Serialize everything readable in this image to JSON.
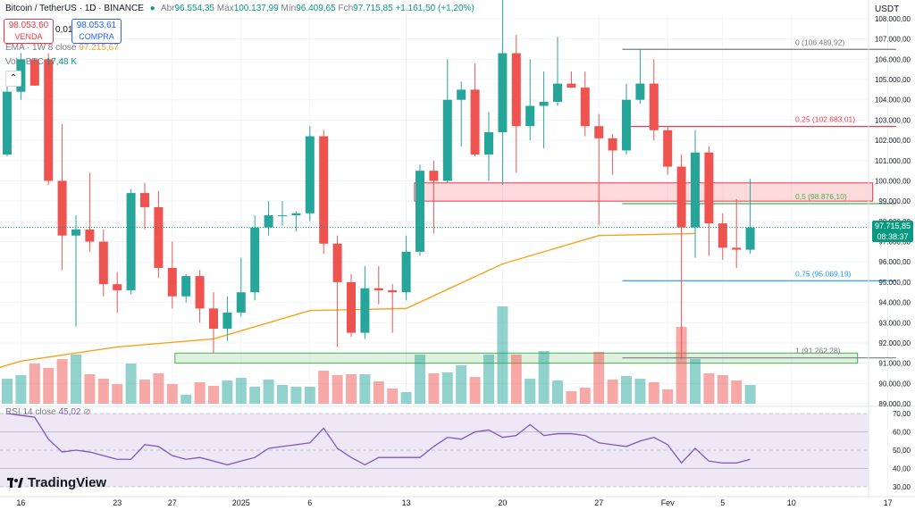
{
  "header": {
    "symbol": "Bitcoin / TetherUS · 1D · BINANCE",
    "open_label": "Abr",
    "open": "96.554,35",
    "high_label": "Máx",
    "high": "100.137,99",
    "low_label": "Mín",
    "low": "96.409,65",
    "close_label": "Fch",
    "close": "97.715,85",
    "change": "+1.161,50 (+1,20%)",
    "sell_price": "98.053,60",
    "sell_label": "VENDA",
    "spread": "0,01",
    "buy_price": "98.053,61",
    "buy_label": "COMPRA",
    "ema_label": "EMA · 1W 8 close",
    "ema_value": "97.215,67",
    "volume_label": "Vol · BTC",
    "volume_value": "17,48 K",
    "rsi_label": "RSI 14 close",
    "rsi_value": "45,02",
    "currency": "USDT",
    "last_price": "97.715,85",
    "countdown": "08:38:37",
    "brand": "TradingView"
  },
  "colors": {
    "up": "#26a69a",
    "down": "#ef5350",
    "ema": "#f7a21b",
    "rsi": "#7e57c2",
    "rsi_band": "#ede7f6",
    "fib0": "#787b86",
    "fib025": "#f23645",
    "fib05": "#4caf50",
    "fib075": "#2196f3",
    "fib1": "#787b86"
  },
  "chart_data": {
    "type": "candlestick",
    "y_range": [
      89000,
      108000
    ],
    "y_ticks": [
      89000,
      90000,
      91000,
      92000,
      93000,
      94000,
      95000,
      96000,
      97000,
      98000,
      99000,
      100000,
      101000,
      102000,
      103000,
      104000,
      105000,
      106000,
      107000,
      108000
    ],
    "y_tick_labels": [
      "89.000,00",
      "90.000,00",
      "91.000,00",
      "92.000,00",
      "93.000,00",
      "94.000,00",
      "95.000,00",
      "96.000,00",
      "97.000,00",
      "98.000,00",
      "99.000,00",
      "100.000,00",
      "101.000,00",
      "102.000,00",
      "103.000,00",
      "104.000,00",
      "105.000,00",
      "106.000,00",
      "107.000,00",
      "108.000,00"
    ],
    "x_ticks": [
      {
        "i": 1,
        "label": "16"
      },
      {
        "i": 8,
        "label": "23"
      },
      {
        "i": 12,
        "label": "27"
      },
      {
        "i": 17,
        "label": "2025"
      },
      {
        "i": 22,
        "label": "6"
      },
      {
        "i": 29,
        "label": "13"
      },
      {
        "i": 36,
        "label": "20"
      },
      {
        "i": 43,
        "label": "27"
      },
      {
        "i": 48,
        "label": "Fev"
      },
      {
        "i": 52,
        "label": "5"
      },
      {
        "i": 57,
        "label": "10"
      },
      {
        "i": 64,
        "label": "17"
      }
    ],
    "candles": [
      {
        "o": 101300,
        "h": 104700,
        "l": 101200,
        "c": 104400
      },
      {
        "o": 104400,
        "h": 106300,
        "l": 104000,
        "c": 106000
      },
      {
        "o": 106000,
        "h": 106000,
        "l": 104700,
        "c": 104700
      },
      {
        "o": 106000,
        "h": 106300,
        "l": 99800,
        "c": 100000
      },
      {
        "o": 100000,
        "h": 102800,
        "l": 95600,
        "c": 97300
      },
      {
        "o": 97300,
        "h": 98300,
        "l": 92800,
        "c": 97600
      },
      {
        "o": 97600,
        "h": 100400,
        "l": 96500,
        "c": 97000
      },
      {
        "o": 97000,
        "h": 97600,
        "l": 94300,
        "c": 94900
      },
      {
        "o": 94900,
        "h": 95500,
        "l": 93500,
        "c": 94600
      },
      {
        "o": 94600,
        "h": 99600,
        "l": 94400,
        "c": 99400
      },
      {
        "o": 99400,
        "h": 99900,
        "l": 97600,
        "c": 98700
      },
      {
        "o": 98700,
        "h": 99500,
        "l": 95200,
        "c": 95700
      },
      {
        "o": 95700,
        "h": 97000,
        "l": 93700,
        "c": 94300
      },
      {
        "o": 94300,
        "h": 95400,
        "l": 94000,
        "c": 95300
      },
      {
        "o": 95300,
        "h": 95600,
        "l": 93000,
        "c": 93700
      },
      {
        "o": 93700,
        "h": 94500,
        "l": 91500,
        "c": 92700
      },
      {
        "o": 92700,
        "h": 94300,
        "l": 92100,
        "c": 93500
      },
      {
        "o": 93500,
        "h": 96200,
        "l": 93300,
        "c": 94500
      },
      {
        "o": 94500,
        "h": 98300,
        "l": 94100,
        "c": 97700
      },
      {
        "o": 97700,
        "h": 99000,
        "l": 97300,
        "c": 98300
      },
      {
        "o": 98300,
        "h": 99000,
        "l": 97800,
        "c": 98300
      },
      {
        "o": 98300,
        "h": 98500,
        "l": 97500,
        "c": 98400
      },
      {
        "o": 98400,
        "h": 102700,
        "l": 98000,
        "c": 102200
      },
      {
        "o": 102200,
        "h": 102500,
        "l": 96400,
        "c": 96900
      },
      {
        "o": 96900,
        "h": 97300,
        "l": 91800,
        "c": 95000
      },
      {
        "o": 95000,
        "h": 95400,
        "l": 92300,
        "c": 92500
      },
      {
        "o": 92500,
        "h": 95800,
        "l": 92200,
        "c": 94700
      },
      {
        "o": 94700,
        "h": 95800,
        "l": 93900,
        "c": 94600
      },
      {
        "o": 94600,
        "h": 94900,
        "l": 92500,
        "c": 94500
      },
      {
        "o": 94500,
        "h": 97300,
        "l": 94100,
        "c": 96500
      },
      {
        "o": 96500,
        "h": 100800,
        "l": 96300,
        "c": 100500
      },
      {
        "o": 100500,
        "h": 101000,
        "l": 97400,
        "c": 100000
      },
      {
        "o": 100000,
        "h": 106000,
        "l": 99900,
        "c": 104000
      },
      {
        "o": 104000,
        "h": 104900,
        "l": 101700,
        "c": 104500
      },
      {
        "o": 104500,
        "h": 105800,
        "l": 101200,
        "c": 101300
      },
      {
        "o": 101300,
        "h": 103400,
        "l": 100000,
        "c": 102400
      },
      {
        "o": 102400,
        "h": 109000,
        "l": 99800,
        "c": 106300
      },
      {
        "o": 106300,
        "h": 107200,
        "l": 100400,
        "c": 102700
      },
      {
        "o": 102700,
        "h": 106000,
        "l": 102000,
        "c": 103700
      },
      {
        "o": 103700,
        "h": 105400,
        "l": 101600,
        "c": 103900
      },
      {
        "o": 103900,
        "h": 107100,
        "l": 103700,
        "c": 104800
      },
      {
        "o": 104800,
        "h": 105400,
        "l": 104600,
        "c": 104600
      },
      {
        "o": 104600,
        "h": 105400,
        "l": 102200,
        "c": 102700
      },
      {
        "o": 102700,
        "h": 103300,
        "l": 97800,
        "c": 102100
      },
      {
        "o": 102100,
        "h": 102300,
        "l": 100300,
        "c": 101500
      },
      {
        "o": 101500,
        "h": 104800,
        "l": 101300,
        "c": 104000
      },
      {
        "o": 104000,
        "h": 106500,
        "l": 103800,
        "c": 104800
      },
      {
        "o": 104800,
        "h": 106000,
        "l": 102000,
        "c": 102500
      },
      {
        "o": 102500,
        "h": 102700,
        "l": 100300,
        "c": 100700
      },
      {
        "o": 100700,
        "h": 101300,
        "l": 91200,
        "c": 97700
      },
      {
        "o": 97700,
        "h": 102500,
        "l": 96200,
        "c": 101400
      },
      {
        "o": 101400,
        "h": 101700,
        "l": 96300,
        "c": 97900
      },
      {
        "o": 97900,
        "h": 98400,
        "l": 96100,
        "c": 96700
      },
      {
        "o": 96700,
        "h": 99100,
        "l": 95700,
        "c": 96600
      },
      {
        "o": 96600,
        "h": 100100,
        "l": 96400,
        "c": 97700
      }
    ],
    "volume": {
      "range": [
        0,
        120000
      ],
      "values": [
        28000,
        32000,
        45000,
        40000,
        50000,
        55000,
        33000,
        28000,
        22000,
        45000,
        27000,
        34000,
        22000,
        10000,
        24000,
        20000,
        26000,
        29000,
        19000,
        27000,
        21000,
        19000,
        19000,
        37000,
        32000,
        33000,
        33000,
        25000,
        17000,
        13000,
        55000,
        34000,
        35000,
        43000,
        30000,
        55000,
        109000,
        55000,
        28000,
        59000,
        26000,
        14000,
        18000,
        58000,
        27000,
        31000,
        28000,
        24000,
        16000,
        86000,
        50000,
        34000,
        32000,
        26000,
        21000
      ]
    },
    "ema_line": [
      {
        "i": -1,
        "v": 90700
      },
      {
        "i": 1,
        "v": 91100
      },
      {
        "i": 8,
        "v": 91800
      },
      {
        "i": 15,
        "v": 92200
      },
      {
        "i": 22,
        "v": 93600
      },
      {
        "i": 29,
        "v": 93700
      },
      {
        "i": 36,
        "v": 95900
      },
      {
        "i": 43,
        "v": 97300
      },
      {
        "i": 50,
        "v": 97400
      }
    ],
    "zones": [
      {
        "i0": 29.6,
        "i1": 62.9,
        "v0": 99000,
        "v1": 99900,
        "kind": "resistance"
      },
      {
        "i0": 12.2,
        "i1": 61.8,
        "v0": 91000,
        "v1": 91500,
        "kind": "support"
      }
    ],
    "fib_levels": [
      {
        "label": "0 (106.489,92)",
        "v": 106490,
        "color": "#787b86"
      },
      {
        "label": "0,25 (102.683,01)",
        "v": 102683,
        "color": "#f23645"
      },
      {
        "label": "0,5 (98.876,10)",
        "v": 98876,
        "color": "#4caf50"
      },
      {
        "label": "0,75 (95.069,19)",
        "v": 95069,
        "color": "#2196f3"
      },
      {
        "label": "1 (91.262,28)",
        "v": 91262,
        "color": "#787b86"
      }
    ],
    "fib_i0": 44.7,
    "fib_i1": 64.6,
    "rsi": {
      "range": [
        30,
        70
      ],
      "band": [
        30,
        70
      ],
      "ticks": [
        30,
        40,
        50,
        60,
        70
      ],
      "tick_labels": [
        "30,00",
        "40,00",
        "50,00",
        "60,00",
        "70,00"
      ],
      "values": [
        70,
        69,
        68,
        56,
        49,
        50,
        49,
        47,
        45,
        45,
        53,
        52,
        47,
        45,
        46,
        44,
        42,
        44,
        46,
        51,
        52,
        53,
        54,
        62,
        51,
        46,
        42,
        46,
        46,
        46,
        46,
        52,
        57,
        56,
        60,
        61,
        57,
        58,
        64,
        58,
        59,
        59,
        58,
        54,
        53,
        52,
        55,
        57,
        53,
        43,
        51,
        44,
        43,
        43,
        45
      ]
    }
  }
}
